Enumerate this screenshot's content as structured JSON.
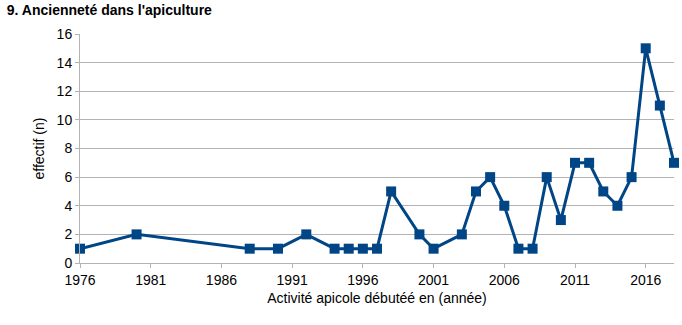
{
  "chart_data": {
    "type": "line",
    "title": "9. Ancienneté dans l'apiculture",
    "x_label": "Activité apicole débutéé en (année)",
    "y_label": "effectif (n)",
    "x": [
      1976,
      1980,
      1988,
      1990,
      1992,
      1994,
      1995,
      1996,
      1997,
      1998,
      2000,
      2001,
      2003,
      2004,
      2005,
      2006,
      2007,
      2008,
      2009,
      2010,
      2011,
      2012,
      2013,
      2014,
      2015,
      2016,
      2017,
      2018
    ],
    "values": [
      1,
      2,
      1,
      1,
      2,
      1,
      1,
      1,
      1,
      5,
      2,
      1,
      2,
      5,
      6,
      4,
      1,
      1,
      6,
      3,
      7,
      7,
      5,
      4,
      6,
      15,
      11,
      7
    ],
    "color": "#004586",
    "marker": "square",
    "line_style": "solid",
    "xlim": [
      1976,
      2018
    ],
    "xticks": [
      1976,
      1981,
      1986,
      1991,
      1996,
      2001,
      2006,
      2011,
      2016
    ],
    "ylim": [
      0,
      16
    ],
    "yticks": [
      0,
      2,
      4,
      6,
      8,
      10,
      12,
      14,
      16
    ],
    "grid": true
  }
}
